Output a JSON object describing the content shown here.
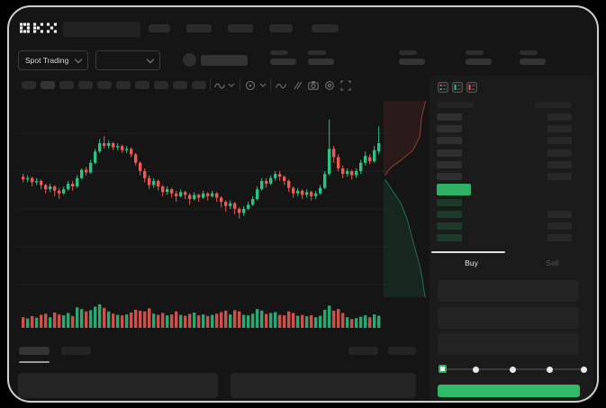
{
  "app": {
    "name": "OKX",
    "logo_text": "OKX"
  },
  "controls": {
    "market_selector_label": "Spot Trading"
  },
  "trade_panel": {
    "buy_tab_label": "Buy",
    "sell_tab_label": "Sell",
    "submit_label": "",
    "slider_percent": 0,
    "slider_stops": 5
  },
  "order_book": {
    "mode_icons": [
      "book-combined-icon",
      "book-bids-icon",
      "book-asks-icon"
    ],
    "ask_rows": 6,
    "bid_rows": 4
  },
  "colors": {
    "candle_up": "#2fc184",
    "candle_down": "#ee5a52",
    "price_green": "#2eb066",
    "buy_button_green": "#2eba68",
    "depth_ask_fill": "rgba(238,90,82,0.10)",
    "depth_ask_line": "rgba(238,90,82,0.55)",
    "depth_bid_fill": "rgba(46,193,132,0.10)",
    "depth_bid_line": "rgba(46,193,132,0.50)",
    "panel_bg": "#1b1b1b",
    "screen_bg": "#151515",
    "frame_border": "#cfcfcf"
  },
  "chart_data": {
    "type": "candlestick",
    "title": "",
    "xlabel": "",
    "ylabel": "",
    "grid": "horizontal-only",
    "legend": "none",
    "price_scale": {
      "min": 0,
      "max": 100
    },
    "candles": [
      [
        56,
        54,
        58,
        52
      ],
      [
        54,
        55,
        57,
        52
      ],
      [
        55,
        52,
        56,
        49
      ],
      [
        52,
        53,
        55,
        50
      ],
      [
        53,
        50,
        54,
        47
      ],
      [
        50,
        47,
        51,
        44
      ],
      [
        47,
        49,
        51,
        45
      ],
      [
        49,
        46,
        50,
        42
      ],
      [
        46,
        44,
        48,
        40
      ],
      [
        44,
        47,
        49,
        43
      ],
      [
        47,
        51,
        53,
        46
      ],
      [
        51,
        49,
        53,
        46
      ],
      [
        49,
        55,
        57,
        48
      ],
      [
        55,
        61,
        62,
        54
      ],
      [
        61,
        59,
        63,
        57
      ],
      [
        59,
        66,
        68,
        58
      ],
      [
        66,
        74,
        76,
        65
      ],
      [
        74,
        80,
        83,
        73
      ],
      [
        80,
        78,
        85,
        76
      ],
      [
        78,
        80,
        82,
        76
      ],
      [
        80,
        77,
        81,
        75
      ],
      [
        77,
        78,
        80,
        75
      ],
      [
        78,
        75,
        79,
        73
      ],
      [
        75,
        76,
        78,
        73
      ],
      [
        76,
        72,
        77,
        70
      ],
      [
        72,
        66,
        73,
        64
      ],
      [
        66,
        60,
        67,
        57
      ],
      [
        60,
        55,
        62,
        52
      ],
      [
        55,
        50,
        57,
        47
      ],
      [
        50,
        53,
        55,
        48
      ],
      [
        53,
        49,
        54,
        46
      ],
      [
        49,
        45,
        50,
        42
      ],
      [
        45,
        47,
        49,
        43
      ],
      [
        47,
        44,
        48,
        41
      ],
      [
        44,
        42,
        46,
        38
      ],
      [
        42,
        45,
        47,
        41
      ],
      [
        45,
        43,
        46,
        40
      ],
      [
        43,
        40,
        44,
        36
      ],
      [
        40,
        43,
        45,
        39
      ],
      [
        43,
        41,
        44,
        38
      ],
      [
        41,
        44,
        46,
        40
      ],
      [
        44,
        42,
        45,
        39
      ],
      [
        42,
        44,
        46,
        41
      ],
      [
        44,
        41,
        45,
        38
      ],
      [
        41,
        38,
        42,
        34
      ],
      [
        38,
        35,
        39,
        31
      ],
      [
        35,
        37,
        39,
        33
      ],
      [
        37,
        33,
        38,
        29
      ],
      [
        33,
        30,
        34,
        26
      ],
      [
        30,
        33,
        35,
        28
      ],
      [
        33,
        36,
        38,
        32
      ],
      [
        36,
        40,
        42,
        35
      ],
      [
        40,
        47,
        49,
        39
      ],
      [
        47,
        53,
        55,
        46
      ],
      [
        53,
        51,
        55,
        48
      ],
      [
        51,
        55,
        57,
        50
      ],
      [
        55,
        58,
        60,
        53
      ],
      [
        58,
        56,
        60,
        53
      ],
      [
        56,
        53,
        57,
        50
      ],
      [
        53,
        48,
        54,
        45
      ],
      [
        48,
        44,
        49,
        41
      ],
      [
        44,
        46,
        48,
        42
      ],
      [
        46,
        43,
        47,
        40
      ],
      [
        43,
        45,
        47,
        41
      ],
      [
        45,
        42,
        46,
        39
      ],
      [
        42,
        44,
        46,
        40
      ],
      [
        44,
        48,
        50,
        43
      ],
      [
        48,
        58,
        60,
        47
      ],
      [
        58,
        76,
        97,
        57
      ],
      [
        76,
        70,
        78,
        66
      ],
      [
        70,
        62,
        72,
        60
      ],
      [
        62,
        58,
        64,
        55
      ],
      [
        58,
        60,
        62,
        56
      ],
      [
        60,
        57,
        61,
        54
      ],
      [
        57,
        60,
        62,
        55
      ],
      [
        60,
        66,
        68,
        58
      ],
      [
        66,
        71,
        74,
        64
      ],
      [
        70,
        67,
        72,
        65
      ],
      [
        67,
        75,
        78,
        66
      ],
      [
        74,
        80,
        92,
        72
      ]
    ],
    "volume": [
      30,
      25,
      35,
      28,
      40,
      45,
      30,
      50,
      42,
      38,
      48,
      35,
      72,
      65,
      55,
      60,
      75,
      85,
      70,
      55,
      45,
      40,
      38,
      42,
      50,
      62,
      58,
      55,
      68,
      45,
      40,
      48,
      38,
      42,
      55,
      40,
      36,
      44,
      50,
      38,
      42,
      36,
      40,
      45,
      52,
      58,
      42,
      60,
      55,
      40,
      38,
      45,
      65,
      58,
      44,
      48,
      52,
      40,
      38,
      55,
      48,
      36,
      40,
      34,
      38,
      30,
      36,
      62,
      80,
      58,
      65,
      48,
      30,
      22,
      26,
      32,
      38,
      30,
      42,
      36
    ],
    "depth": {
      "asks_curve": [
        [
          0.88,
          0.0
        ],
        [
          0.8,
          0.08
        ],
        [
          0.76,
          0.18
        ],
        [
          0.62,
          0.25
        ],
        [
          0.38,
          0.3
        ],
        [
          0.15,
          0.34
        ],
        [
          0.03,
          0.38
        ]
      ],
      "bids_curve": [
        [
          0.03,
          0.4
        ],
        [
          0.14,
          0.44
        ],
        [
          0.36,
          0.52
        ],
        [
          0.49,
          0.6
        ],
        [
          0.58,
          0.68
        ],
        [
          0.68,
          0.77
        ],
        [
          0.77,
          0.85
        ],
        [
          0.82,
          0.92
        ],
        [
          0.86,
          0.99
        ],
        [
          0.88,
          1.0
        ]
      ]
    }
  }
}
